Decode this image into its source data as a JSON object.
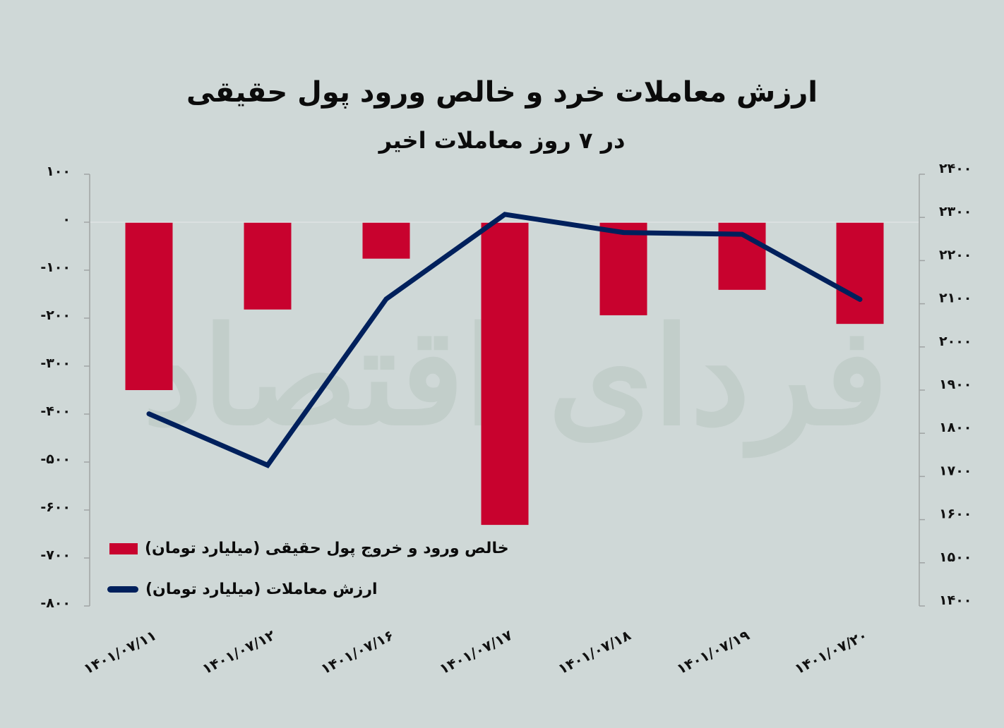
{
  "title": {
    "main": "ارزش معاملات خرد و خالص ورود پول حقیقی",
    "sub": "در ۷ روز معاملات اخیر"
  },
  "watermark": "فردای اقتصاد",
  "colors": {
    "background": "#cfd8d7",
    "bar": "#c8022e",
    "line": "#00205c",
    "axis": "#a0a4a4"
  },
  "legend": {
    "bar_label": "خالص ورود و خروج پول حقیقی (میلیارد تومان)",
    "line_label": "ارزش معاملات (میلیارد تومان)"
  },
  "axes": {
    "left_ticks": [
      "۱۰۰",
      "۰",
      "-۱۰۰",
      "-۲۰۰",
      "-۳۰۰",
      "-۴۰۰",
      "-۵۰۰",
      "-۶۰۰",
      "-۷۰۰",
      "-۸۰۰"
    ],
    "right_ticks": [
      "۲۴۰۰",
      "۲۳۰۰",
      "۲۲۰۰",
      "۲۱۰۰",
      "۲۰۰۰",
      "۱۹۰۰",
      "۱۸۰۰",
      "۱۷۰۰",
      "۱۶۰۰",
      "۱۵۰۰",
      "۱۴۰۰"
    ],
    "x_labels": [
      "۱۴۰۱/۰۷/۱۱",
      "۱۴۰۱/۰۷/۱۲",
      "۱۴۰۱/۰۷/۱۶",
      "۱۴۰۱/۰۷/۱۷",
      "۱۴۰۱/۰۷/۱۸",
      "۱۴۰۱/۰۷/۱۹",
      "۱۴۰۱/۰۷/۲۰"
    ]
  },
  "chart_data": {
    "type": "bar+line",
    "title": "ارزش معاملات خرد و خالص ورود پول حقیقی",
    "subtitle": "در ۷ روز معاملات اخیر",
    "categories": [
      "1401/07/11",
      "1401/07/12",
      "1401/07/16",
      "1401/07/17",
      "1401/07/18",
      "1401/07/19",
      "1401/07/20"
    ],
    "series": [
      {
        "name": "خالص ورود و خروج پول حقیقی (میلیارد تومان)",
        "type": "bar",
        "axis": "left",
        "values": [
          -350,
          -182,
          -76,
          -631,
          -194,
          -141,
          -212
        ]
      },
      {
        "name": "ارزش معاملات (میلیارد تومان)",
        "type": "line",
        "axis": "right",
        "values": [
          1845,
          1726,
          2111,
          2307,
          2265,
          2261,
          2110
        ]
      }
    ],
    "y_left": {
      "min": -800,
      "max": 100,
      "step": 100
    },
    "y_right": {
      "min": 1400,
      "max": 2400,
      "step": 100
    },
    "xlabel": "",
    "ylabel": "",
    "grid": false,
    "legend_position": "inside-bottom-left"
  }
}
